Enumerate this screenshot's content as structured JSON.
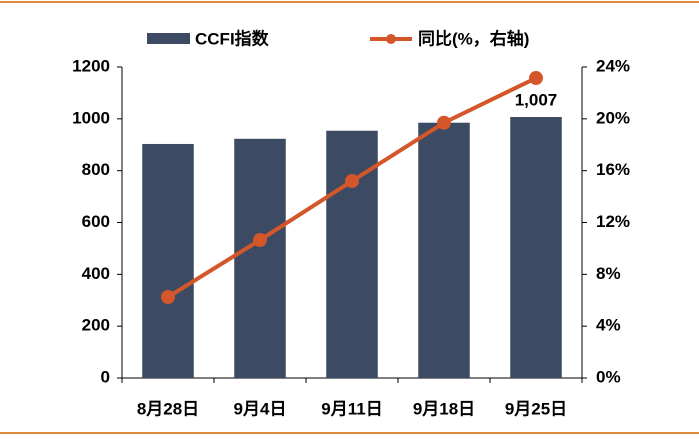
{
  "chart_data": {
    "type": "bar-line",
    "categories": [
      "8月28日",
      "9月4日",
      "9月11日",
      "9月18日",
      "9月25日"
    ],
    "series": [
      {
        "name": "CCFI指数",
        "color": "#3d4a63",
        "type": "bar",
        "values": [
          903,
          923,
          954,
          985,
          1007
        ],
        "value_labels": [
          null,
          null,
          null,
          null,
          "1,007"
        ]
      },
      {
        "name": "同比(%，右轴)",
        "color": "#d4572a",
        "type": "line",
        "axis": "y2",
        "values": [
          6.25,
          10.65,
          15.2,
          19.7,
          23.15
        ]
      }
    ],
    "ylim": [
      0,
      1200
    ],
    "yticks": [
      0,
      200,
      400,
      600,
      800,
      1000,
      1200
    ],
    "y2lim": [
      0,
      24
    ],
    "y2ticks": [
      {
        "value": 0,
        "label": "0%"
      },
      {
        "value": 4,
        "label": "4%"
      },
      {
        "value": 8,
        "label": "8%"
      },
      {
        "value": 12,
        "label": "12%"
      },
      {
        "value": 16,
        "label": "16%"
      },
      {
        "value": 20,
        "label": "20%"
      },
      {
        "value": 24,
        "label": "24%"
      }
    ]
  }
}
